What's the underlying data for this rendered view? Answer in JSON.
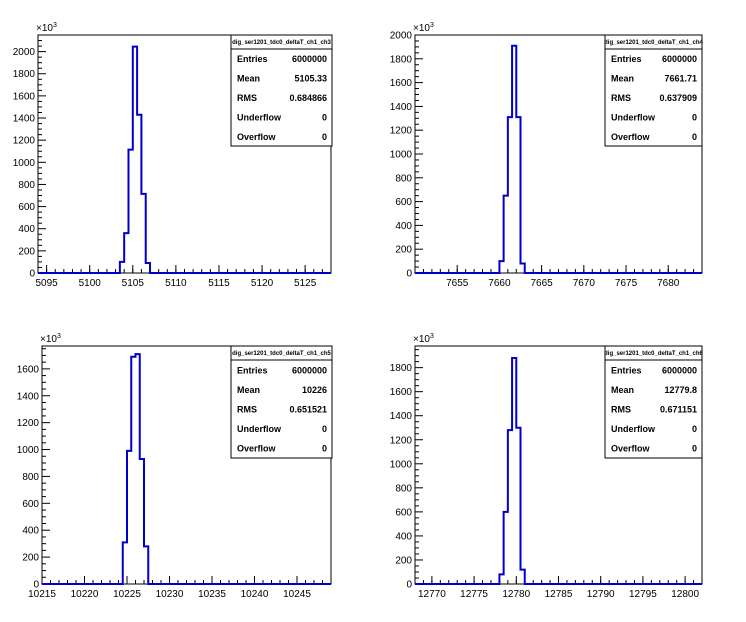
{
  "chart_data": [
    {
      "type": "bar",
      "title": "",
      "xlabel": "",
      "ylabel": "",
      "y_multiplier_label": "×10",
      "y_multiplier_exp": "3",
      "xlim": [
        5094,
        5128
      ],
      "ylim": [
        0,
        2150
      ],
      "x_ticks": [
        5095,
        5100,
        5105,
        5110,
        5115,
        5120,
        5125
      ],
      "y_ticks": [
        0,
        200,
        400,
        600,
        800,
        1000,
        1200,
        1400,
        1600,
        1800,
        2000
      ],
      "bin_width": 0.5,
      "x": [
        5103.5,
        5104.0,
        5104.5,
        5105.0,
        5105.5,
        5106.0,
        5106.5
      ],
      "values": [
        100,
        360,
        1115,
        2045,
        1430,
        715,
        90
      ],
      "stats": {
        "title": "dig_ser1201_tdc0_deltaT_ch1_ch3",
        "rows": [
          {
            "label": "Entries",
            "value": "6000000"
          },
          {
            "label": "Mean",
            "value": "5105.33"
          },
          {
            "label": "RMS",
            "value": "0.684866"
          },
          {
            "label": "Underflow",
            "value": "0"
          },
          {
            "label": "Overflow",
            "value": "0"
          }
        ]
      }
    },
    {
      "type": "bar",
      "title": "",
      "xlabel": "",
      "ylabel": "",
      "y_multiplier_label": "×10",
      "y_multiplier_exp": "3",
      "xlim": [
        7650,
        7684
      ],
      "ylim": [
        0,
        2000
      ],
      "x_ticks": [
        7655,
        7660,
        7665,
        7670,
        7675,
        7680
      ],
      "y_ticks": [
        0,
        200,
        400,
        600,
        800,
        1000,
        1200,
        1400,
        1600,
        1800,
        2000
      ],
      "bin_width": 0.5,
      "x": [
        7660.0,
        7660.5,
        7661.0,
        7661.5,
        7662.0,
        7662.5
      ],
      "values": [
        100,
        650,
        1310,
        1910,
        1310,
        80
      ],
      "stats": {
        "title": "dig_ser1201_tdc0_deltaT_ch1_ch4",
        "rows": [
          {
            "label": "Entries",
            "value": "6000000"
          },
          {
            "label": "Mean",
            "value": "7661.71"
          },
          {
            "label": "RMS",
            "value": "0.637909"
          },
          {
            "label": "Underflow",
            "value": "0"
          },
          {
            "label": "Overflow",
            "value": "0"
          }
        ]
      }
    },
    {
      "type": "bar",
      "title": "",
      "xlabel": "",
      "ylabel": "",
      "y_multiplier_label": "×10",
      "y_multiplier_exp": "3",
      "xlim": [
        10215,
        10249
      ],
      "ylim": [
        0,
        1770
      ],
      "x_ticks": [
        10215,
        10220,
        10225,
        10230,
        10235,
        10240,
        10245
      ],
      "y_ticks": [
        0,
        200,
        400,
        600,
        800,
        1000,
        1200,
        1400,
        1600
      ],
      "bin_width": 0.5,
      "x": [
        10224.5,
        10225.0,
        10225.5,
        10226.0,
        10226.5,
        10227.0
      ],
      "values": [
        310,
        990,
        1690,
        1710,
        930,
        280
      ],
      "stats": {
        "title": "dig_ser1201_tdc0_deltaT_ch1_ch5",
        "rows": [
          {
            "label": "Entries",
            "value": "6000000"
          },
          {
            "label": "Mean",
            "value": "10226"
          },
          {
            "label": "RMS",
            "value": "0.651521"
          },
          {
            "label": "Underflow",
            "value": "0"
          },
          {
            "label": "Overflow",
            "value": "0"
          }
        ]
      }
    },
    {
      "type": "bar",
      "title": "",
      "xlabel": "",
      "ylabel": "",
      "y_multiplier_label": "×10",
      "y_multiplier_exp": "3",
      "xlim": [
        12768,
        12802
      ],
      "ylim": [
        0,
        1980
      ],
      "x_ticks": [
        12770,
        12775,
        12780,
        12785,
        12790,
        12795,
        12800
      ],
      "y_ticks": [
        0,
        200,
        400,
        600,
        800,
        1000,
        1200,
        1400,
        1600,
        1800
      ],
      "bin_width": 0.5,
      "x": [
        12778.0,
        12778.5,
        12779.0,
        12779.5,
        12780.0,
        12780.5
      ],
      "values": [
        80,
        600,
        1280,
        1880,
        1300,
        120
      ],
      "stats": {
        "title": "dig_ser1201_tdc0_deltaT_ch1_ch6",
        "rows": [
          {
            "label": "Entries",
            "value": "6000000"
          },
          {
            "label": "Mean",
            "value": "12779.8"
          },
          {
            "label": "RMS",
            "value": "0.671151"
          },
          {
            "label": "Underflow",
            "value": "0"
          },
          {
            "label": "Overflow",
            "value": "0"
          }
        ]
      }
    }
  ],
  "colors": {
    "histogram_line": "#0000cc",
    "axis": "#000000",
    "background": "#ffffff"
  }
}
